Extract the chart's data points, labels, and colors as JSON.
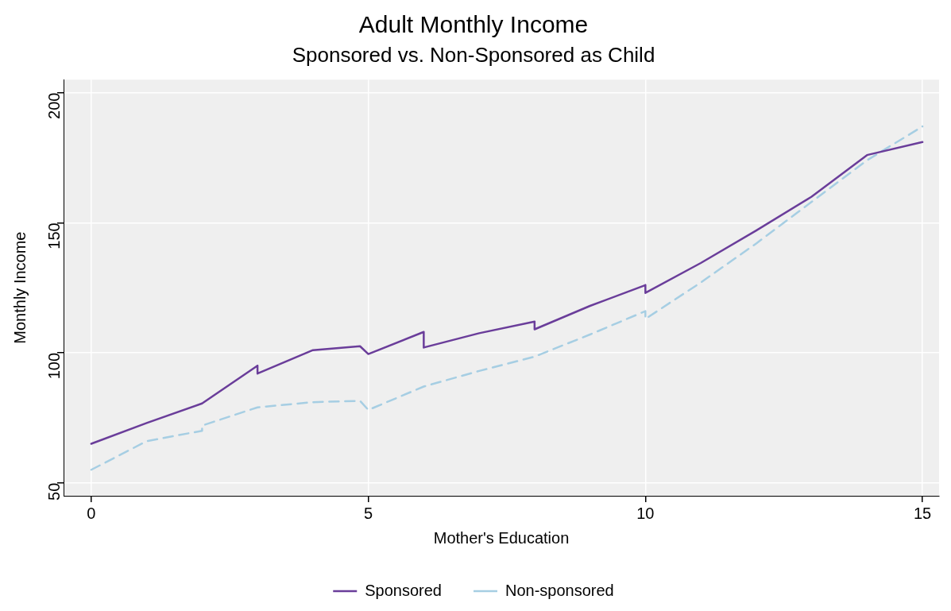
{
  "chart_data": {
    "type": "line",
    "title": "Adult Monthly Income",
    "subtitle": "Sponsored vs. Non-Sponsored as Child",
    "xlabel": "Mother's Education",
    "ylabel": "Monthly Income",
    "xlim": [
      -0.5,
      15.3
    ],
    "xticks": [
      0,
      5,
      10,
      15
    ],
    "ylim": [
      45,
      205
    ],
    "yticks": [
      50,
      100,
      150,
      200
    ],
    "grid": true,
    "legend": "bottom",
    "marker": "none",
    "series": [
      {
        "name": "Sponsored",
        "color": "#6a3d9a",
        "line_style": "solid",
        "x": [
          0,
          1,
          2,
          3,
          3,
          4,
          4.85,
          5,
          6,
          6,
          7,
          8,
          8,
          9,
          10,
          10,
          11,
          12,
          13,
          14,
          15
        ],
        "values": [
          65,
          73,
          80.5,
          95,
          92,
          101,
          102.5,
          99.5,
          108,
          102,
          107.5,
          112,
          109,
          118,
          126,
          123,
          134.5,
          147,
          160,
          176,
          181
        ]
      },
      {
        "name": "Non-sponsored",
        "color": "#a6cee3",
        "line_style": "dashed",
        "x": [
          0,
          1,
          2,
          2,
          3,
          4,
          4.85,
          5,
          6,
          7,
          8,
          9,
          10,
          10,
          11,
          12,
          13,
          14,
          15
        ],
        "values": [
          55,
          66,
          70,
          72,
          79,
          81,
          81.5,
          78,
          87,
          93,
          98.5,
          107,
          116,
          113,
          127,
          142,
          158,
          174,
          187
        ]
      }
    ]
  }
}
